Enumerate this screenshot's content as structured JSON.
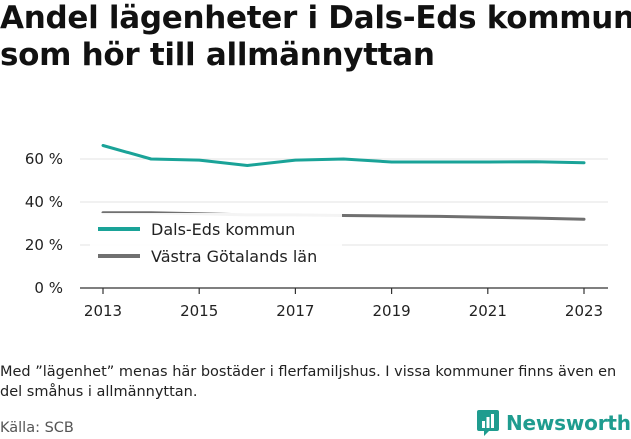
{
  "title_line1": "Andel lägenheter i Dals-Eds kommun",
  "title_line2": "som hör till allmännyttan",
  "footnote": "Med ”lägenhet” menas här bostäder i flerfamiljshus. I vissa kommuner finns även en del småhus i allmännyttan.",
  "source": "Källa: SCB",
  "brand": {
    "name": "Newsworthy",
    "color": "#1f9c8f"
  },
  "chart_data": {
    "type": "line",
    "title": "Andel lägenheter i Dals-Eds kommun som hör till allmännyttan",
    "xlabel": "",
    "ylabel": "",
    "x": [
      2013,
      2014,
      2015,
      2016,
      2017,
      2018,
      2019,
      2020,
      2021,
      2022,
      2023
    ],
    "x_ticks": [
      "2013",
      "2015",
      "2017",
      "2019",
      "2021",
      "2023"
    ],
    "y_ticks": [
      "0 %",
      "20 %",
      "40 %",
      "60 %"
    ],
    "ylim": [
      0,
      70
    ],
    "grid": "horizontal",
    "legend_position": "left",
    "series": [
      {
        "name": "Dals-Eds kommun",
        "color": "#1aa398",
        "values": [
          66.3,
          60.0,
          59.5,
          57.0,
          59.5,
          60.0,
          58.6,
          58.6,
          58.6,
          58.7,
          58.3
        ]
      },
      {
        "name": "Västra Götalands län",
        "color": "#707070",
        "values": [
          35.0,
          35.0,
          34.5,
          34.0,
          34.0,
          33.7,
          33.5,
          33.3,
          32.9,
          32.5,
          32.0
        ]
      }
    ]
  }
}
